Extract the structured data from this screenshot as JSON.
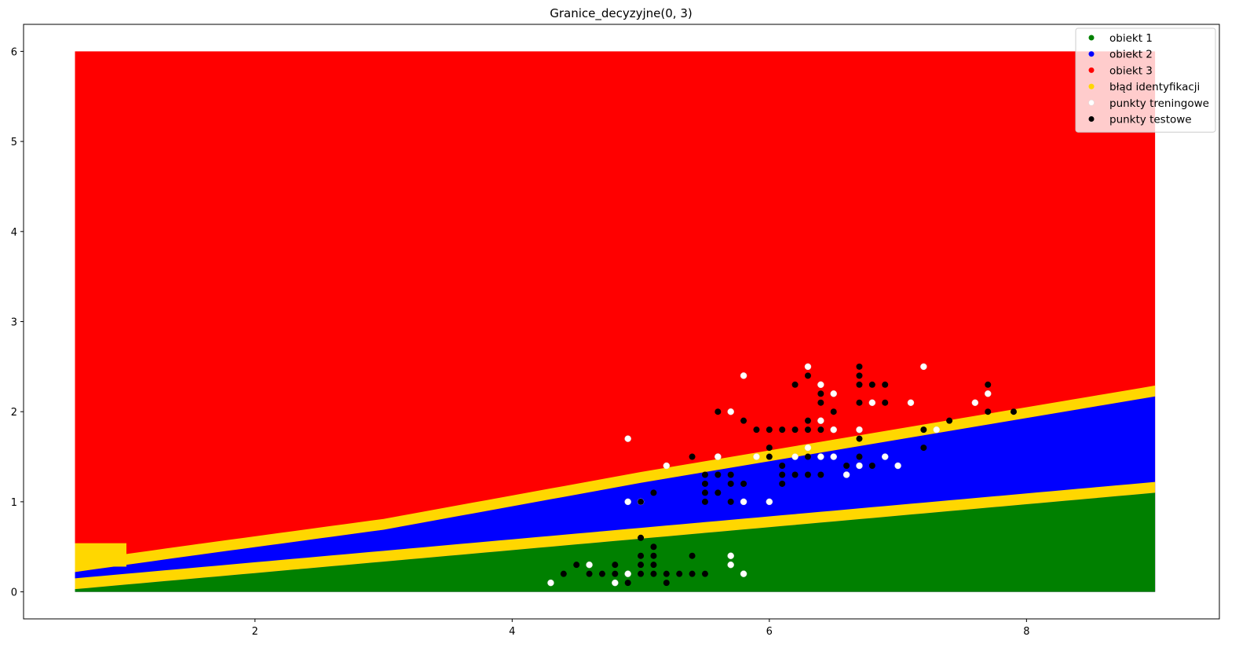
{
  "chart_data": {
    "type": "scatter",
    "title": "Granice_decyzyjne(0, 3)",
    "xlabel": "",
    "ylabel": "",
    "xlim": [
      0.2,
      9.5
    ],
    "ylim": [
      -0.3,
      6.3
    ],
    "xticks": [
      2,
      4,
      6,
      8
    ],
    "yticks": [
      0,
      1,
      2,
      3,
      4,
      5,
      6
    ],
    "grid": false,
    "legend_position": "top-right",
    "grid_extent": {
      "x": [
        0.6,
        9.0
      ],
      "y": [
        0.0,
        6.0
      ]
    },
    "regions": {
      "class1_upper_boundary": {
        "x": [
          0.6,
          9.0
        ],
        "y": [
          0.03,
          1.1
        ]
      },
      "class2_upper_boundary": {
        "x": [
          0.6,
          1.0,
          1.5,
          3.0,
          5.0,
          9.0
        ],
        "y": [
          0.22,
          0.3,
          0.4,
          0.69,
          1.21,
          2.17
        ]
      },
      "band_width": 0.12,
      "left_error_patch": {
        "x": [
          0.6,
          1.0
        ],
        "y": [
          0.28,
          0.54
        ]
      }
    },
    "series": [
      {
        "name": "obiekt 1",
        "color": "#008000"
      },
      {
        "name": "obiekt 2",
        "color": "#0000ff"
      },
      {
        "name": "obiekt 3",
        "color": "#ff0000"
      },
      {
        "name": "błąd identyfikacji",
        "color": "#ffd700"
      },
      {
        "name": "punkty treningowe",
        "color": "#ffffff",
        "points": [
          [
            4.3,
            0.1
          ],
          [
            4.6,
            0.3
          ],
          [
            4.8,
            0.1
          ],
          [
            4.9,
            0.2
          ],
          [
            5.7,
            0.4
          ],
          [
            5.7,
            0.3
          ],
          [
            5.8,
            0.2
          ],
          [
            4.9,
            1.0
          ],
          [
            5.0,
            1.0
          ],
          [
            5.6,
            1.5
          ],
          [
            5.8,
            1.0
          ],
          [
            6.0,
            1.0
          ],
          [
            6.2,
            1.5
          ],
          [
            6.4,
            1.5
          ],
          [
            6.5,
            1.5
          ],
          [
            6.6,
            1.3
          ],
          [
            6.7,
            1.4
          ],
          [
            6.9,
            1.5
          ],
          [
            7.0,
            1.4
          ],
          [
            4.9,
            1.7
          ],
          [
            5.2,
            1.4
          ],
          [
            5.6,
            1.5
          ],
          [
            5.7,
            2.0
          ],
          [
            5.8,
            2.4
          ],
          [
            5.9,
            1.5
          ],
          [
            6.3,
            2.5
          ],
          [
            6.3,
            1.6
          ],
          [
            6.4,
            2.3
          ],
          [
            6.4,
            1.9
          ],
          [
            6.5,
            2.2
          ],
          [
            6.5,
            1.8
          ],
          [
            6.7,
            1.8
          ],
          [
            6.8,
            2.1
          ],
          [
            7.1,
            2.1
          ],
          [
            7.2,
            2.5
          ],
          [
            7.3,
            1.8
          ],
          [
            7.6,
            2.1
          ],
          [
            7.7,
            2.2
          ]
        ]
      },
      {
        "name": "punkty testowe",
        "color": "#000000",
        "points": [
          [
            4.4,
            0.2
          ],
          [
            4.5,
            0.3
          ],
          [
            4.6,
            0.2
          ],
          [
            4.7,
            0.2
          ],
          [
            4.8,
            0.2
          ],
          [
            4.8,
            0.3
          ],
          [
            4.9,
            0.1
          ],
          [
            5.0,
            0.2
          ],
          [
            5.0,
            0.3
          ],
          [
            5.0,
            0.4
          ],
          [
            5.0,
            0.6
          ],
          [
            5.1,
            0.2
          ],
          [
            5.1,
            0.3
          ],
          [
            5.1,
            0.4
          ],
          [
            5.1,
            0.5
          ],
          [
            5.2,
            0.1
          ],
          [
            5.2,
            0.2
          ],
          [
            5.3,
            0.2
          ],
          [
            5.4,
            0.2
          ],
          [
            5.4,
            0.4
          ],
          [
            5.5,
            0.2
          ],
          [
            5.0,
            1.0
          ],
          [
            5.1,
            1.1
          ],
          [
            5.5,
            1.0
          ],
          [
            5.5,
            1.1
          ],
          [
            5.5,
            1.2
          ],
          [
            5.5,
            1.3
          ],
          [
            5.6,
            1.1
          ],
          [
            5.6,
            1.3
          ],
          [
            5.7,
            1.0
          ],
          [
            5.7,
            1.2
          ],
          [
            5.7,
            1.3
          ],
          [
            5.8,
            1.2
          ],
          [
            6.0,
            1.5
          ],
          [
            6.0,
            1.6
          ],
          [
            6.1,
            1.2
          ],
          [
            6.1,
            1.3
          ],
          [
            6.1,
            1.4
          ],
          [
            6.2,
            1.3
          ],
          [
            6.3,
            1.3
          ],
          [
            6.3,
            1.5
          ],
          [
            6.4,
            1.3
          ],
          [
            6.6,
            1.4
          ],
          [
            6.7,
            1.5
          ],
          [
            6.8,
            1.4
          ],
          [
            5.4,
            1.5
          ],
          [
            5.6,
            2.0
          ],
          [
            5.8,
            1.9
          ],
          [
            5.9,
            1.8
          ],
          [
            6.0,
            1.8
          ],
          [
            6.1,
            1.8
          ],
          [
            6.2,
            1.8
          ],
          [
            6.2,
            2.3
          ],
          [
            6.3,
            1.8
          ],
          [
            6.3,
            1.9
          ],
          [
            6.3,
            2.4
          ],
          [
            6.4,
            1.8
          ],
          [
            6.4,
            2.1
          ],
          [
            6.4,
            2.2
          ],
          [
            6.5,
            2.0
          ],
          [
            6.7,
            1.7
          ],
          [
            6.7,
            2.1
          ],
          [
            6.7,
            2.3
          ],
          [
            6.7,
            2.4
          ],
          [
            6.7,
            2.5
          ],
          [
            6.8,
            2.3
          ],
          [
            6.9,
            2.1
          ],
          [
            6.9,
            2.3
          ],
          [
            7.2,
            1.6
          ],
          [
            7.2,
            1.8
          ],
          [
            7.4,
            1.9
          ],
          [
            7.7,
            2.0
          ],
          [
            7.7,
            2.3
          ],
          [
            7.9,
            2.0
          ]
        ]
      }
    ]
  }
}
